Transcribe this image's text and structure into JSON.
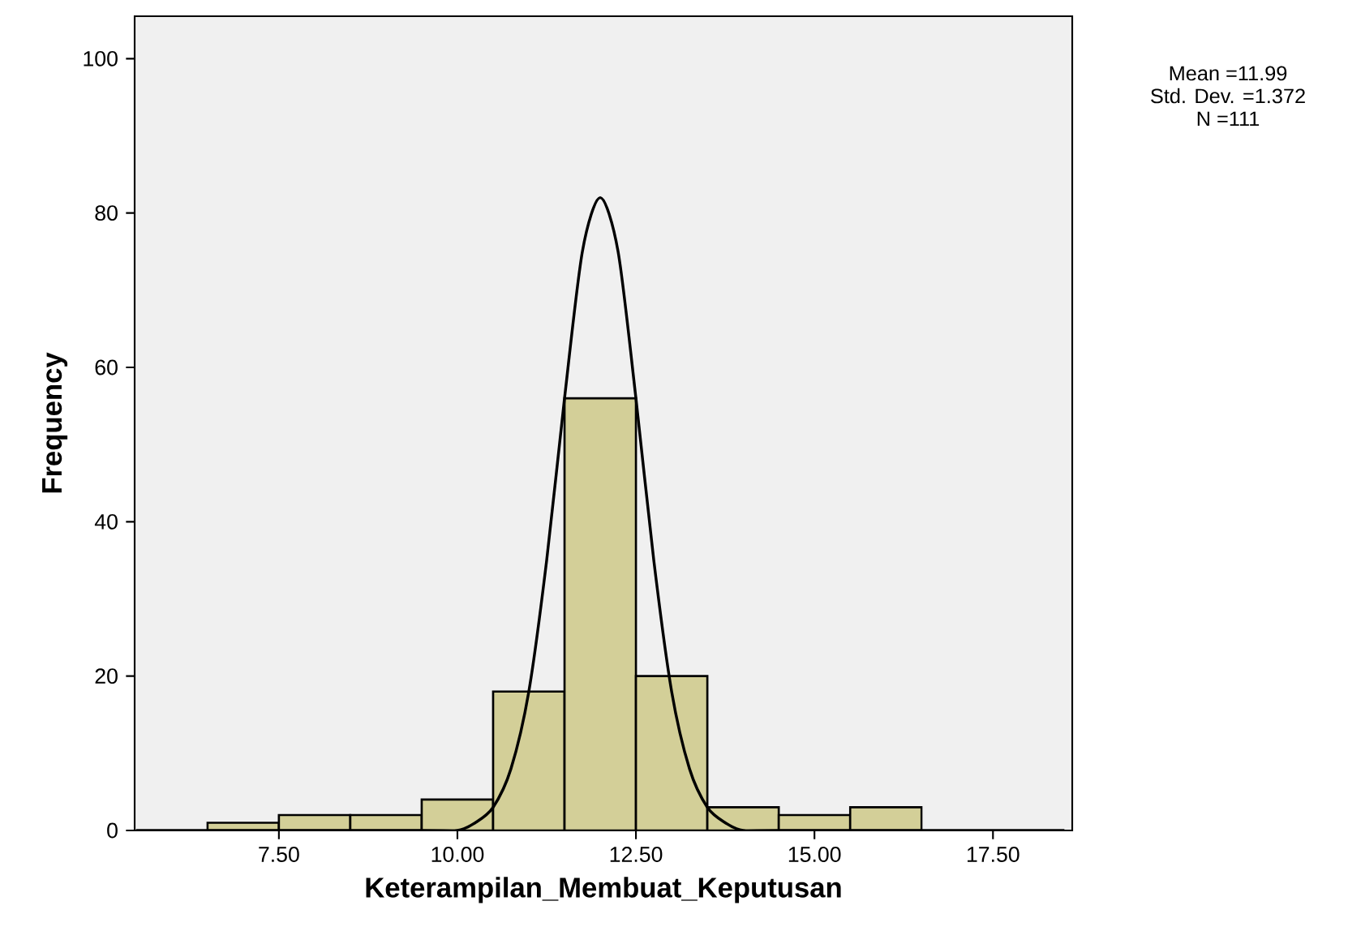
{
  "chart_data": {
    "type": "histogram",
    "xlabel": "Keterampilan_Membuat_Keputusan",
    "ylabel": "Frequency",
    "bins": [
      6.5,
      7.5,
      8.5,
      9.5,
      10.5,
      11.5,
      12.5,
      13.5,
      14.5,
      15.5,
      16.5
    ],
    "values": [
      1,
      2,
      2,
      4,
      18,
      56,
      20,
      3,
      2,
      3
    ],
    "color": "#d3cf98",
    "series": [
      {
        "type": "line",
        "color": "#000000",
        "marker": "none",
        "x": [
          5.5,
          9.5,
          10,
          10.25,
          10.5,
          10.75,
          11,
          11.25,
          11.5,
          11.75,
          12,
          12.25,
          12.5,
          12.75,
          13,
          13.25,
          13.5,
          13.75,
          14,
          14.5,
          18.5
        ],
        "values": [
          0,
          0,
          0,
          1,
          3,
          8,
          18,
          35,
          56,
          75,
          82,
          75,
          56,
          35,
          18,
          8,
          3,
          1,
          0,
          0,
          0
        ]
      }
    ],
    "xlim": [
      5.48,
      18.61
    ],
    "ylim": [
      0,
      105.5
    ],
    "xticks": [
      {
        "value": 7.5,
        "label": "7.50"
      },
      {
        "value": 10,
        "label": "10.00"
      },
      {
        "value": 12.5,
        "label": "12.50"
      },
      {
        "value": 15,
        "label": "15.00"
      },
      {
        "value": 17.5,
        "label": "17.50"
      }
    ],
    "yticks": [
      0,
      20,
      40,
      60,
      80,
      100
    ],
    "grid": false,
    "annotations": [
      "Mean =11.99",
      "Std. Dev. =1.372",
      "N =111"
    ]
  }
}
